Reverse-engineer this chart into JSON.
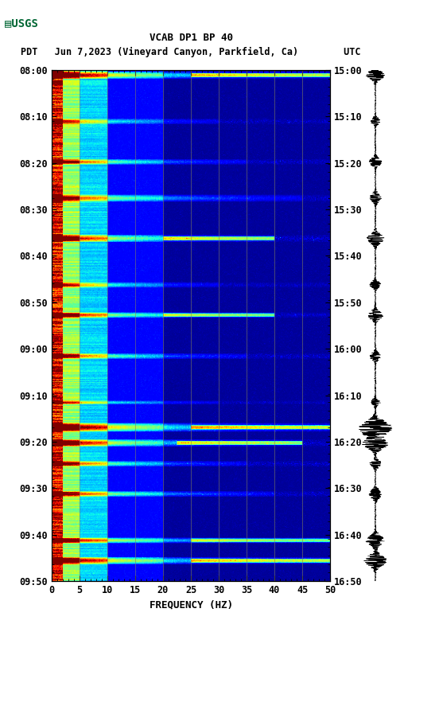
{
  "title_line1": "VCAB DP1 BP 40",
  "title_line2": "PDT   Jun 7,2023 (Vineyard Canyon, Parkfield, Ca)        UTC",
  "xlabel": "FREQUENCY (HZ)",
  "left_time_labels": [
    "08:00",
    "08:10",
    "08:20",
    "08:30",
    "08:40",
    "08:50",
    "09:00",
    "09:10",
    "09:20",
    "09:30",
    "09:40",
    "09:50"
  ],
  "right_time_labels": [
    "15:00",
    "15:10",
    "15:20",
    "15:30",
    "15:40",
    "15:50",
    "16:00",
    "16:10",
    "16:20",
    "16:30",
    "16:40",
    "16:50"
  ],
  "freq_ticks": [
    0,
    5,
    10,
    15,
    20,
    25,
    30,
    35,
    40,
    45,
    50
  ],
  "vertical_grid_freqs": [
    5,
    10,
    15,
    20,
    25,
    30,
    35,
    40,
    45
  ],
  "background_color": "#ffffff",
  "colormap": "jet",
  "usgs_logo_color": "#006633",
  "font_family": "monospace",
  "fig_width": 5.52,
  "fig_height": 8.92,
  "dpi": 100
}
